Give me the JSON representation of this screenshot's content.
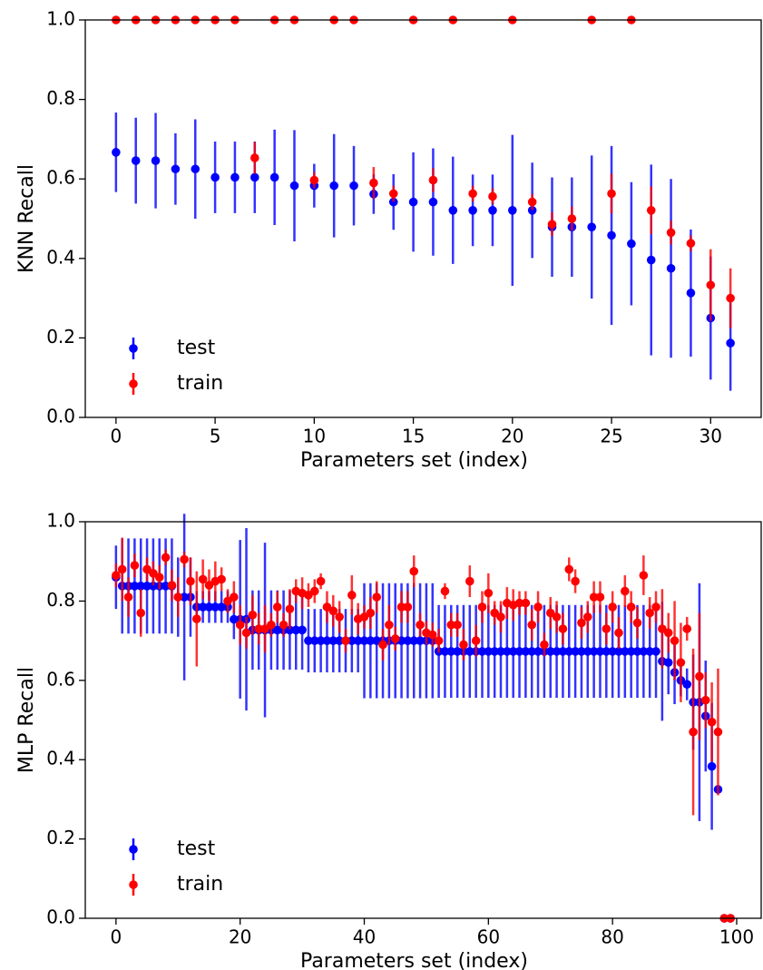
{
  "chart_data": [
    {
      "type": "errorbar",
      "ylabel": "KNN Recall",
      "xlabel": "Parameters set (index)",
      "xlim": [
        -1.55,
        32.55
      ],
      "ylim": [
        0,
        1
      ],
      "xticks": [
        0,
        5,
        10,
        15,
        20,
        25,
        30
      ],
      "yticks": [
        {
          "value": 0,
          "label": "0.0"
        },
        0.2,
        0.4,
        0.6,
        0.8,
        {
          "value": 1,
          "label": "1.0"
        }
      ],
      "legend": "lower left",
      "x": [
        0,
        1,
        2,
        3,
        4,
        5,
        6,
        7,
        8,
        9,
        10,
        11,
        12,
        13,
        14,
        15,
        16,
        17,
        18,
        19,
        20,
        21,
        22,
        23,
        24,
        25,
        26,
        27,
        28,
        29,
        30,
        31
      ],
      "series": [
        {
          "name": "test",
          "color": "#0000ff",
          "values": [
            0.667,
            0.646,
            0.646,
            0.625,
            0.625,
            0.604,
            0.604,
            0.604,
            0.604,
            0.583,
            0.583,
            0.583,
            0.583,
            0.562,
            0.542,
            0.542,
            0.542,
            0.521,
            0.521,
            0.521,
            0.521,
            0.521,
            0.479,
            0.479,
            0.479,
            0.458,
            0.437,
            0.396,
            0.375,
            0.313,
            0.25,
            0.187
          ],
          "errors": [
            0.1,
            0.108,
            0.12,
            0.09,
            0.125,
            0.09,
            0.09,
            0.09,
            0.12,
            0.14,
            0.055,
            0.13,
            0.1,
            0.05,
            0.07,
            0.125,
            0.135,
            0.135,
            0.09,
            0.09,
            0.19,
            0.12,
            0.125,
            0.125,
            0.18,
            0.225,
            0.155,
            0.24,
            0.225,
            0.16,
            0.155,
            0.12
          ]
        },
        {
          "name": "train",
          "color": "#ff0000",
          "values": [
            1,
            1,
            1,
            1,
            1,
            1,
            1,
            0.653,
            1,
            1,
            0.597,
            1,
            1,
            0.59,
            0.563,
            1,
            0.597,
            1,
            0.563,
            0.556,
            1,
            0.542,
            0.486,
            0.5,
            1,
            0.563,
            1,
            0.521,
            0.465,
            0.438,
            0.333,
            0.3
          ],
          "errors": [
            0,
            0,
            0,
            0,
            0,
            0,
            0,
            0.04,
            0,
            0,
            0.02,
            0,
            0,
            0.04,
            0.02,
            0,
            0.03,
            0,
            0.02,
            0.02,
            0,
            0.02,
            0.03,
            0.03,
            0,
            0.05,
            0,
            0.06,
            0.03,
            0.02,
            0.09,
            0.075
          ]
        }
      ]
    },
    {
      "type": "errorbar",
      "ylabel": "MLP Recall",
      "xlabel": "Parameters set (index)",
      "xlim": [
        -4.95,
        103.95
      ],
      "ylim": [
        0,
        1
      ],
      "xticks": [
        0,
        20,
        40,
        60,
        80,
        100
      ],
      "yticks": [
        {
          "value": 0,
          "label": "0.0"
        },
        0.2,
        0.4,
        0.6,
        0.8,
        {
          "value": 1,
          "label": "1.0"
        }
      ],
      "legend": "lower left",
      "x": [
        0,
        1,
        2,
        3,
        4,
        5,
        6,
        7,
        8,
        9,
        10,
        11,
        12,
        13,
        14,
        15,
        16,
        17,
        18,
        19,
        20,
        21,
        22,
        23,
        24,
        25,
        26,
        27,
        28,
        29,
        30,
        31,
        32,
        33,
        34,
        35,
        36,
        37,
        38,
        39,
        40,
        41,
        42,
        43,
        44,
        45,
        46,
        47,
        48,
        49,
        50,
        51,
        52,
        53,
        54,
        55,
        56,
        57,
        58,
        59,
        60,
        61,
        62,
        63,
        64,
        65,
        66,
        67,
        68,
        69,
        70,
        71,
        72,
        73,
        74,
        75,
        76,
        77,
        78,
        79,
        80,
        81,
        82,
        83,
        84,
        85,
        86,
        87,
        88,
        89,
        90,
        91,
        92,
        93,
        94,
        95,
        96,
        97,
        98,
        99
      ],
      "series": [
        {
          "name": "test",
          "color": "#0000ff",
          "values": [
            0.86,
            0.838,
            0.838,
            0.838,
            0.838,
            0.838,
            0.838,
            0.838,
            0.838,
            0.838,
            0.81,
            0.81,
            0.81,
            0.785,
            0.785,
            0.785,
            0.785,
            0.785,
            0.785,
            0.754,
            0.754,
            0.754,
            0.727,
            0.727,
            0.727,
            0.727,
            0.727,
            0.727,
            0.727,
            0.727,
            0.727,
            0.7,
            0.7,
            0.7,
            0.7,
            0.7,
            0.7,
            0.7,
            0.7,
            0.7,
            0.7,
            0.7,
            0.7,
            0.7,
            0.7,
            0.7,
            0.7,
            0.7,
            0.7,
            0.7,
            0.7,
            0.7,
            0.673,
            0.673,
            0.673,
            0.673,
            0.673,
            0.673,
            0.673,
            0.673,
            0.673,
            0.673,
            0.673,
            0.673,
            0.673,
            0.673,
            0.673,
            0.673,
            0.673,
            0.673,
            0.673,
            0.673,
            0.673,
            0.673,
            0.673,
            0.673,
            0.673,
            0.673,
            0.673,
            0.673,
            0.673,
            0.673,
            0.673,
            0.673,
            0.673,
            0.673,
            0.673,
            0.673,
            0.648,
            0.645,
            0.62,
            0.6,
            0.59,
            0.545,
            0.545,
            0.51,
            0.383,
            0.325,
            0,
            0
          ],
          "errors": [
            0.08,
            0.12,
            0.12,
            0.12,
            0.12,
            0.12,
            0.12,
            0.12,
            0.12,
            0.12,
            0.1,
            0.21,
            0.1,
            0.04,
            0.04,
            0.04,
            0.04,
            0.04,
            0.04,
            0.05,
            0.2,
            0.23,
            0.1,
            0.1,
            0.22,
            0.1,
            0.1,
            0.1,
            0.1,
            0.1,
            0.1,
            0.08,
            0.08,
            0.08,
            0.08,
            0.08,
            0.08,
            0.08,
            0.08,
            0.08,
            0.145,
            0.145,
            0.145,
            0.145,
            0.145,
            0.145,
            0.145,
            0.145,
            0.145,
            0.145,
            0.145,
            0.145,
            0.117,
            0.117,
            0.117,
            0.117,
            0.117,
            0.117,
            0.117,
            0.117,
            0.117,
            0.117,
            0.117,
            0.117,
            0.117,
            0.117,
            0.117,
            0.117,
            0.117,
            0.117,
            0.117,
            0.117,
            0.117,
            0.117,
            0.117,
            0.117,
            0.117,
            0.117,
            0.117,
            0.117,
            0.117,
            0.117,
            0.117,
            0.117,
            0.117,
            0.117,
            0.117,
            0.117,
            0.15,
            0.08,
            0.08,
            0.04,
            0.04,
            0.12,
            0.3,
            0.14,
            0.16,
            0,
            0,
            0
          ]
        },
        {
          "name": "train",
          "color": "#ff0000",
          "values": [
            0.865,
            0.88,
            0.81,
            0.89,
            0.77,
            0.88,
            0.87,
            0.86,
            0.91,
            0.84,
            0.81,
            0.905,
            0.85,
            0.755,
            0.855,
            0.84,
            0.85,
            0.855,
            0.8,
            0.81,
            0.74,
            0.72,
            0.765,
            0.73,
            0.73,
            0.74,
            0.785,
            0.74,
            0.78,
            0.825,
            0.82,
            0.815,
            0.825,
            0.85,
            0.785,
            0.775,
            0.76,
            0.7,
            0.815,
            0.755,
            0.76,
            0.77,
            0.81,
            0.69,
            0.74,
            0.705,
            0.785,
            0.785,
            0.875,
            0.74,
            0.72,
            0.715,
            0.7,
            0.825,
            0.74,
            0.74,
            0.69,
            0.85,
            0.7,
            0.785,
            0.82,
            0.77,
            0.76,
            0.795,
            0.79,
            0.795,
            0.795,
            0.74,
            0.785,
            0.69,
            0.77,
            0.76,
            0.73,
            0.88,
            0.85,
            0.745,
            0.76,
            0.81,
            0.81,
            0.73,
            0.785,
            0.72,
            0.825,
            0.785,
            0.745,
            0.865,
            0.77,
            0.785,
            0.73,
            0.72,
            0.7,
            0.645,
            0.73,
            0.47,
            0.61,
            0.55,
            0.495,
            0.47,
            0,
            0
          ],
          "errors": [
            0.03,
            0.08,
            0.05,
            0.03,
            0.06,
            0.03,
            0.03,
            0.03,
            0.02,
            0.04,
            0.05,
            0.02,
            0.06,
            0.12,
            0.05,
            0.04,
            0.05,
            0.03,
            0.03,
            0.04,
            0.05,
            0.04,
            0.05,
            0.04,
            0.06,
            0.03,
            0.04,
            0.03,
            0.05,
            0.03,
            0.04,
            0.03,
            0.03,
            0.02,
            0.04,
            0.04,
            0.04,
            0.03,
            0.05,
            0.04,
            0.03,
            0.04,
            0.04,
            0.04,
            0.05,
            0.03,
            0.04,
            0.04,
            0.04,
            0.03,
            0.03,
            0.03,
            0.03,
            0.02,
            0.03,
            0.03,
            0.04,
            0.04,
            0.04,
            0.04,
            0.05,
            0.03,
            0.04,
            0.04,
            0.04,
            0.03,
            0.03,
            0.04,
            0.04,
            0.03,
            0.04,
            0.04,
            0.04,
            0.03,
            0.03,
            0.04,
            0.04,
            0.04,
            0.04,
            0.04,
            0.04,
            0.04,
            0.04,
            0.04,
            0.04,
            0.05,
            0.04,
            0.04,
            0.1,
            0.05,
            0.1,
            0.1,
            0.03,
            0.21,
            0.16,
            0.07,
            0.1,
            0.16,
            0,
            0
          ]
        }
      ]
    }
  ]
}
